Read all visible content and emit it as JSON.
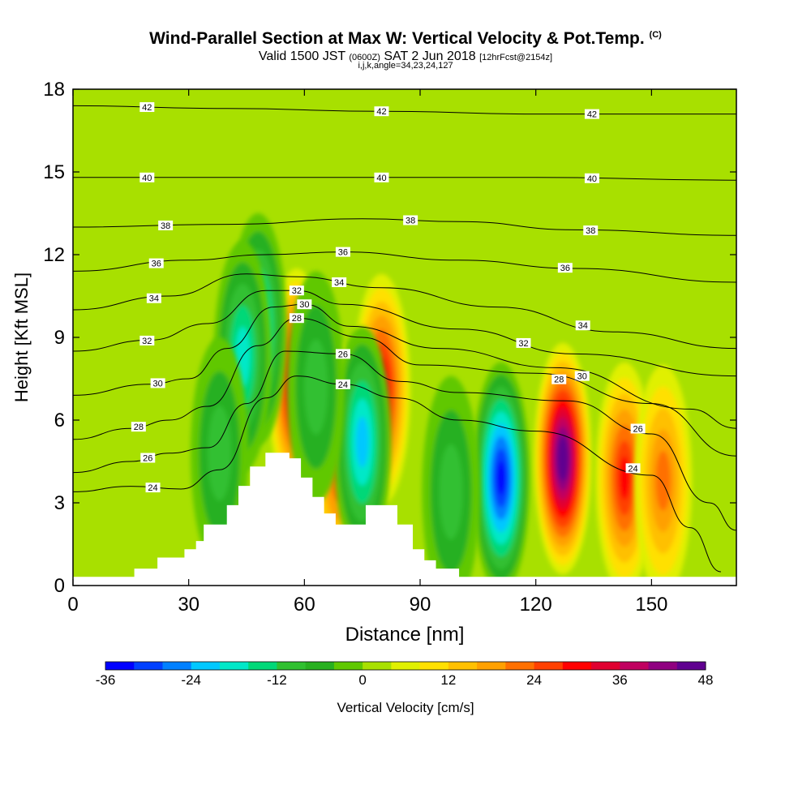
{
  "title": {
    "main": "Wind-Parallel Section at Max W: Vertical Velocity & Pot.Temp.",
    "copyright": "(C)",
    "valid_prefix": "Valid 1500 JST",
    "valid_utc": "(0600Z)",
    "valid_date": "SAT 2 Jun 2018",
    "valid_fcst": "[12hrFcst@2154z]",
    "indices": "i,j,k,angle=34,23,24,127"
  },
  "chart_data": {
    "type": "heatmap",
    "xlabel": "Distance [nm]",
    "ylabel": "Height [Kft MSL]",
    "xlim": [
      0,
      172
    ],
    "ylim": [
      0,
      18
    ],
    "xticks": [
      0,
      30,
      60,
      90,
      120,
      150
    ],
    "yticks": [
      0,
      3,
      6,
      9,
      12,
      15,
      18
    ],
    "colorbar": {
      "label": "Vertical Velocity [cm/s]",
      "ticks": [
        -36,
        -24,
        -12,
        0,
        12,
        24,
        36,
        48
      ],
      "range": [
        -36,
        48
      ],
      "colors": [
        "#0000ff",
        "#0040ff",
        "#0080ff",
        "#00c8ff",
        "#00e8c8",
        "#00d878",
        "#30c030",
        "#28b020",
        "#60c800",
        "#a8e000",
        "#e0f000",
        "#ffe000",
        "#ffc000",
        "#ffa000",
        "#ff7000",
        "#ff4000",
        "#ff0000",
        "#e00030",
        "#c00060",
        "#900080",
        "#600090"
      ]
    },
    "terrain": [
      [
        0,
        0.3
      ],
      [
        16,
        0.3
      ],
      [
        16,
        0.6
      ],
      [
        22,
        0.6
      ],
      [
        22,
        1.0
      ],
      [
        29,
        1.0
      ],
      [
        29,
        1.3
      ],
      [
        32,
        1.3
      ],
      [
        32,
        1.6
      ],
      [
        34,
        1.6
      ],
      [
        34,
        2.2
      ],
      [
        40,
        2.2
      ],
      [
        40,
        2.9
      ],
      [
        43,
        2.9
      ],
      [
        43,
        3.6
      ],
      [
        46,
        3.6
      ],
      [
        46,
        4.3
      ],
      [
        50,
        4.3
      ],
      [
        50,
        4.8
      ],
      [
        56,
        4.8
      ],
      [
        56,
        4.6
      ],
      [
        59,
        4.6
      ],
      [
        59,
        3.9
      ],
      [
        62,
        3.9
      ],
      [
        62,
        3.2
      ],
      [
        65,
        3.2
      ],
      [
        65,
        2.6
      ],
      [
        68,
        2.6
      ],
      [
        68,
        2.2
      ],
      [
        71,
        2.2
      ],
      [
        71,
        2.2
      ],
      [
        76,
        2.2
      ],
      [
        76,
        2.9
      ],
      [
        84,
        2.9
      ],
      [
        84,
        2.2
      ],
      [
        88,
        2.2
      ],
      [
        88,
        1.3
      ],
      [
        91,
        1.3
      ],
      [
        91,
        0.9
      ],
      [
        94,
        0.9
      ],
      [
        94,
        0.6
      ],
      [
        100,
        0.6
      ],
      [
        100,
        0.3
      ],
      [
        172,
        0.3
      ]
    ],
    "w_features": [
      {
        "x": 58,
        "y": 7.3,
        "w": 36
      },
      {
        "x": 69,
        "y": 4.6,
        "w": 24
      },
      {
        "x": 80,
        "y": 7.1,
        "w": 30
      },
      {
        "x": 111,
        "y": 3.9,
        "w": -36
      },
      {
        "x": 127,
        "y": 4.6,
        "w": 48
      },
      {
        "x": 143,
        "y": 3.9,
        "w": 28
      },
      {
        "x": 153,
        "y": 3.8,
        "w": 18
      },
      {
        "x": 48,
        "y": 9.3,
        "w": -25
      },
      {
        "x": 44,
        "y": 8.3,
        "w": -20
      },
      {
        "x": 75,
        "y": 5.2,
        "w": -22
      },
      {
        "x": 98,
        "y": 3.4,
        "w": -12
      },
      {
        "x": 63,
        "y": 7.2,
        "w": -10
      },
      {
        "x": 38,
        "y": 4.8,
        "w": -10
      }
    ],
    "theta_contours": [
      {
        "label": "42",
        "points": [
          [
            0,
            17.4
          ],
          [
            40,
            17.3
          ],
          [
            80,
            17.2
          ],
          [
            120,
            17.1
          ],
          [
            172,
            17.1
          ]
        ]
      },
      {
        "label": "40",
        "points": [
          [
            0,
            14.8
          ],
          [
            40,
            14.8
          ],
          [
            80,
            14.8
          ],
          [
            120,
            14.8
          ],
          [
            172,
            14.7
          ]
        ]
      },
      {
        "label": "38",
        "points": [
          [
            0,
            13.0
          ],
          [
            40,
            13.1
          ],
          [
            75,
            13.3
          ],
          [
            100,
            13.2
          ],
          [
            130,
            12.9
          ],
          [
            172,
            12.7
          ]
        ]
      },
      {
        "label": "36",
        "points": [
          [
            0,
            11.4
          ],
          [
            30,
            11.8
          ],
          [
            50,
            12.0
          ],
          [
            70,
            12.1
          ],
          [
            100,
            11.8
          ],
          [
            130,
            11.5
          ],
          [
            172,
            11.0
          ]
        ]
      },
      {
        "label": "34",
        "points": [
          [
            0,
            10.0
          ],
          [
            25,
            10.5
          ],
          [
            45,
            11.3
          ],
          [
            58,
            11.2
          ],
          [
            80,
            10.8
          ],
          [
            110,
            10.1
          ],
          [
            140,
            9.2
          ],
          [
            172,
            8.6
          ]
        ]
      },
      {
        "label": "32",
        "points": [
          [
            0,
            8.5
          ],
          [
            20,
            8.9
          ],
          [
            35,
            9.5
          ],
          [
            50,
            10.7
          ],
          [
            58,
            10.7
          ],
          [
            70,
            10.2
          ],
          [
            100,
            9.3
          ],
          [
            130,
            8.4
          ],
          [
            172,
            7.6
          ]
        ]
      },
      {
        "label": "30",
        "points": [
          [
            0,
            6.9
          ],
          [
            20,
            7.3
          ],
          [
            30,
            7.5
          ],
          [
            40,
            8.6
          ],
          [
            52,
            10.1
          ],
          [
            60,
            10.2
          ],
          [
            72,
            9.4
          ],
          [
            95,
            8.6
          ],
          [
            125,
            7.9
          ],
          [
            160,
            6.4
          ],
          [
            172,
            5.7
          ]
        ]
      },
      {
        "label": "28",
        "points": [
          [
            0,
            5.3
          ],
          [
            15,
            5.7
          ],
          [
            25,
            6.0
          ],
          [
            35,
            6.5
          ],
          [
            48,
            8.7
          ],
          [
            58,
            9.7
          ],
          [
            75,
            9.0
          ],
          [
            90,
            8.0
          ],
          [
            120,
            7.7
          ],
          [
            150,
            6.6
          ],
          [
            172,
            4.7
          ]
        ]
      },
      {
        "label": "26",
        "points": [
          [
            0,
            4.1
          ],
          [
            15,
            4.5
          ],
          [
            25,
            4.8
          ],
          [
            35,
            5.0
          ],
          [
            45,
            6.6
          ],
          [
            55,
            8.5
          ],
          [
            70,
            8.4
          ],
          [
            85,
            7.4
          ],
          [
            100,
            7.0
          ],
          [
            128,
            6.7
          ],
          [
            150,
            5.5
          ],
          [
            165,
            3.0
          ],
          [
            172,
            2.0
          ]
        ]
      },
      {
        "label": "24",
        "points": [
          [
            0,
            3.4
          ],
          [
            15,
            3.6
          ],
          [
            28,
            3.5
          ],
          [
            38,
            4.2
          ],
          [
            50,
            6.8
          ],
          [
            58,
            7.6
          ],
          [
            70,
            7.3
          ],
          [
            84,
            6.8
          ],
          [
            100,
            6.0
          ],
          [
            120,
            5.6
          ],
          [
            150,
            4.0
          ],
          [
            160,
            2.1
          ],
          [
            168,
            0.5
          ]
        ]
      }
    ]
  }
}
